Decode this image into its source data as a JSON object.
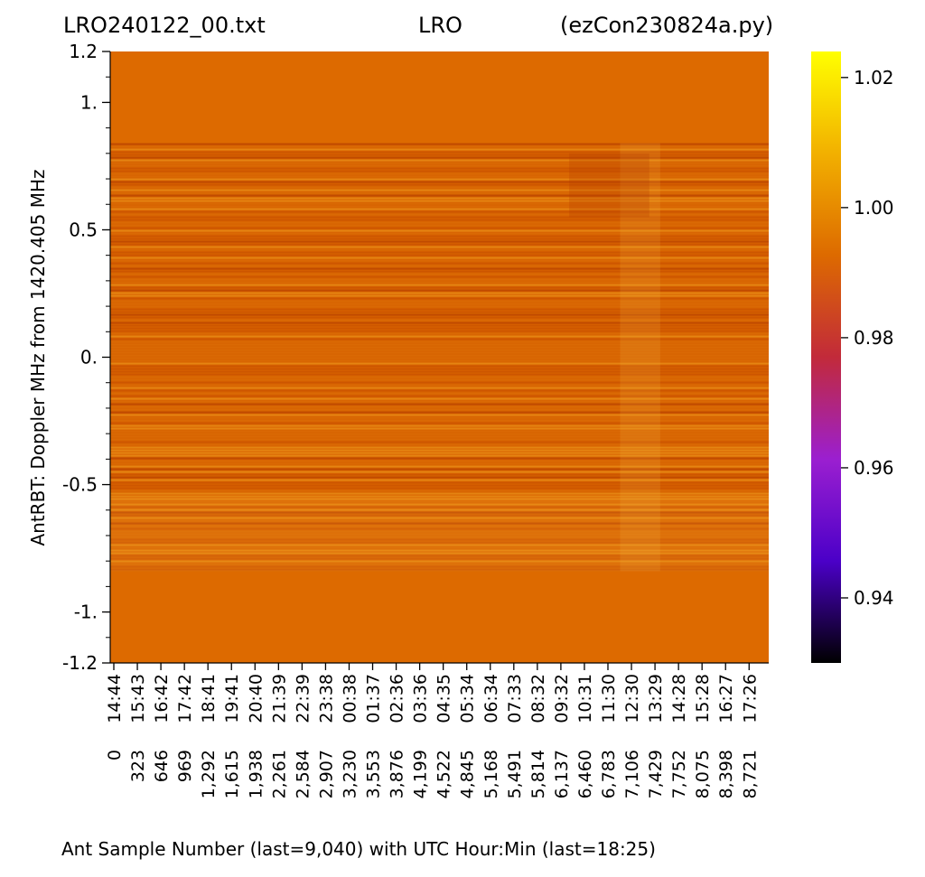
{
  "title": {
    "left": "LRO240122_00.txt",
    "center": "LRO",
    "right": "(ezCon230824a.py)"
  },
  "colors": {
    "background_band": "#dd6a00",
    "colormap": "gnuplot",
    "cmap_stops": [
      "#000000",
      "#4b00c8",
      "#9b1fd0",
      "#c22a3a",
      "#dd6a00",
      "#f2b000",
      "#ffff00"
    ]
  },
  "chart_data": {
    "type": "heatmap",
    "title": "",
    "xlabel": "Ant Sample Number (last=9,040) with UTC Hour:Min (last=18:25)",
    "ylabel": "AntRBT:  Doppler MHz from 1420.405 MHz",
    "x_range": [
      0,
      9040
    ],
    "y_range": [
      -1.2,
      1.2
    ],
    "y_ticks": [
      {
        "value": 1.2,
        "label": "1.2"
      },
      {
        "value": 1.0,
        "label": "1."
      },
      {
        "value": 0.5,
        "label": "0.5"
      },
      {
        "value": 0.0,
        "label": "0."
      },
      {
        "value": -0.5,
        "label": "-0.5"
      },
      {
        "value": -1.0,
        "label": "-1."
      },
      {
        "value": -1.2,
        "label": "-1.2"
      }
    ],
    "x_ticks": [
      {
        "value": 0,
        "sample": "0",
        "time": "14:44"
      },
      {
        "value": 323,
        "sample": "323",
        "time": "15:43"
      },
      {
        "value": 646,
        "sample": "646",
        "time": "16:42"
      },
      {
        "value": 969,
        "sample": "969",
        "time": "17:42"
      },
      {
        "value": 1292,
        "sample": "1,292",
        "time": "18:41"
      },
      {
        "value": 1615,
        "sample": "1,615",
        "time": "19:41"
      },
      {
        "value": 1938,
        "sample": "1,938",
        "time": "20:40"
      },
      {
        "value": 2261,
        "sample": "2,261",
        "time": "21:39"
      },
      {
        "value": 2584,
        "sample": "2,584",
        "time": "22:39"
      },
      {
        "value": 2907,
        "sample": "2,907",
        "time": "23:38"
      },
      {
        "value": 3230,
        "sample": "3,230",
        "time": "00:38"
      },
      {
        "value": 3553,
        "sample": "3,553",
        "time": "01:37"
      },
      {
        "value": 3876,
        "sample": "3,876",
        "time": "02:36"
      },
      {
        "value": 4199,
        "sample": "4,199",
        "time": "03:36"
      },
      {
        "value": 4522,
        "sample": "4,522",
        "time": "04:35"
      },
      {
        "value": 4845,
        "sample": "4,845",
        "time": "05:34"
      },
      {
        "value": 5168,
        "sample": "5,168",
        "time": "06:34"
      },
      {
        "value": 5491,
        "sample": "5,491",
        "time": "07:33"
      },
      {
        "value": 5814,
        "sample": "5,814",
        "time": "08:32"
      },
      {
        "value": 6137,
        "sample": "6,137",
        "time": "09:32"
      },
      {
        "value": 6460,
        "sample": "6,460",
        "time": "10:31"
      },
      {
        "value": 6783,
        "sample": "6,783",
        "time": "11:30"
      },
      {
        "value": 7106,
        "sample": "7,106",
        "time": "12:30"
      },
      {
        "value": 7429,
        "sample": "7,429",
        "time": "13:29"
      },
      {
        "value": 7752,
        "sample": "7,752",
        "time": "14:28"
      },
      {
        "value": 8075,
        "sample": "8,075",
        "time": "15:28"
      },
      {
        "value": 8398,
        "sample": "8,398",
        "time": "16:27"
      },
      {
        "value": 8721,
        "sample": "8,721",
        "time": "17:26"
      }
    ],
    "data_band_doppler_range": [
      -0.84,
      0.84
    ],
    "fill_value": 1.0,
    "colorbar": {
      "range": [
        0.93,
        1.024
      ],
      "ticks": [
        {
          "value": 1.02,
          "label": "1.02"
        },
        {
          "value": 1.0,
          "label": "1.00"
        },
        {
          "value": 0.98,
          "label": "0.98"
        },
        {
          "value": 0.96,
          "label": "0.96"
        },
        {
          "value": 0.94,
          "label": "0.94"
        }
      ]
    }
  }
}
